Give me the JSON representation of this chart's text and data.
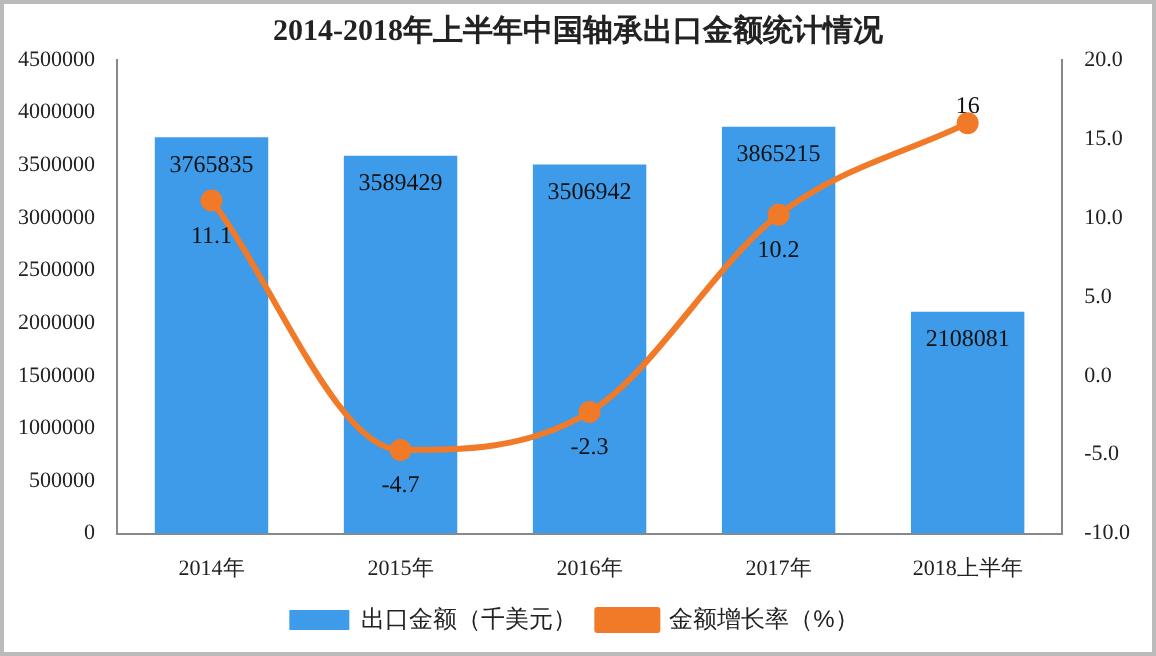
{
  "chart_data": {
    "type": "bar",
    "title": "2014-2018年上半年中国轴承出口金额统计情况",
    "categories": [
      "2014年",
      "2015年",
      "2016年",
      "2017年",
      "2018上半年"
    ],
    "series": [
      {
        "name": "出口金额（千美元）",
        "color": "#3d9be9",
        "values": [
          3765835,
          3589429,
          3506942,
          3865215,
          2108081
        ]
      },
      {
        "name": "金额增长率（%）",
        "type": "line",
        "axis": "y2",
        "color": "#f07a27",
        "values": [
          11.1,
          -4.7,
          -2.3,
          10.2,
          16
        ]
      }
    ],
    "ylim": [
      0,
      4500000
    ],
    "yticks": [
      0,
      500000,
      1000000,
      1500000,
      2000000,
      2500000,
      3000000,
      3500000,
      4000000,
      4500000
    ],
    "y2lim": [
      -10,
      20
    ],
    "y2ticks": [
      {
        "value": -10,
        "label": "-10.0"
      },
      {
        "value": -5,
        "label": "-5.0"
      },
      {
        "value": 0,
        "label": "0.0"
      },
      {
        "value": 5,
        "label": "5.0"
      },
      {
        "value": 10,
        "label": "10.0"
      },
      {
        "value": 15,
        "label": "15.0"
      },
      {
        "value": 20,
        "label": "20.0"
      }
    ],
    "data_labels": true,
    "legend": "bottom",
    "grid": false,
    "marker": "circle",
    "line_style": "solid"
  }
}
